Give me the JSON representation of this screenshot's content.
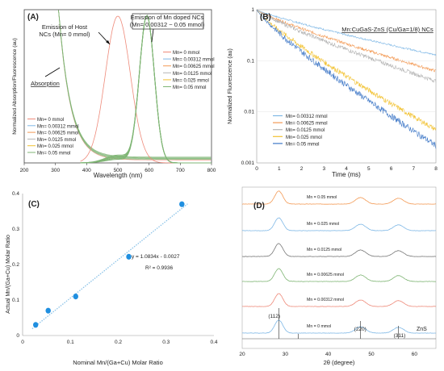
{
  "panels": {
    "A": {
      "label": "(A)",
      "ylabel": "Normalized Absorption/Fluorescence (au)",
      "xlabel": "Wavelength (nm)",
      "annotations": [
        "Emission of Host",
        "NCs (Mn= 0 mmol)",
        "Emission of Mn doped NCs",
        "(Mn= 0.00312 ~ 0.05 mmol)",
        "Absorption"
      ],
      "legend": [
        "Mn= 0 mmol",
        "Mn= 0.00312 mmol",
        "Mn= 0.00625 mmol",
        "Mn= 0.0125 mmol",
        "Mn= 0.025 mmol",
        "Mn= 0.05 mmol"
      ],
      "xticks": [
        "200",
        "300",
        "400",
        "500",
        "600",
        "700",
        "800"
      ]
    },
    "B": {
      "label": "(B)",
      "title": "Mn:CuGaS-ZnS (Cu/Ga=1/8) NCs",
      "ylabel": "Normalized Fluorescence (au)",
      "xlabel": "Time (ms)",
      "legend": [
        "Mn= 0.00312 mmol",
        "Mn= 0.00625 mmol",
        "Mn= 0.0125 mmol",
        "Mn= 0.025 mmol",
        "Mn= 0.05 mmol"
      ],
      "xticks": [
        "0",
        "1",
        "2",
        "3",
        "4",
        "5",
        "6",
        "7",
        "8"
      ],
      "yticks": [
        "1",
        "0.1",
        "0.01",
        "0.001"
      ]
    },
    "C": {
      "label": "(C)",
      "ylabel": "Actual Mn/(Ga+Cu) Molar Ratio",
      "xlabel": "Nominal Mn/(Ga+Cu) Molar Ratio",
      "equation": "y = 1.0834x - 0.0027",
      "r2": "R² = 0.9936",
      "xticks": [
        "0",
        "0.1",
        "0.2",
        "0.3",
        "0.4"
      ],
      "yticks": [
        "0",
        "0.1",
        "0.2",
        "0.3",
        "0.4"
      ]
    },
    "D": {
      "label": "(D)",
      "xlabel": "2θ (degree)",
      "traces": [
        "Mn = 0.05 mmol",
        "Mn = 0.025 mmol",
        "Mn = 0.0125 mmol",
        "Mn = 0.00625 mmol",
        "Mn = 0.00312 mmol",
        "Mn = 0 mmol"
      ],
      "reference": "ZnS",
      "peaks": [
        "(112)",
        "(220)",
        "(311)"
      ],
      "xticks": [
        "20",
        "30",
        "40",
        "50",
        "60"
      ]
    }
  },
  "colors": {
    "mn0": "#ee8a7a",
    "mn00312": "#7fb8e6",
    "mn00625": "#f39a55",
    "mn0125": "#b4b4b4",
    "mn025": "#f2c232",
    "mn05": "#3f78c7",
    "pl_green": "#7fb574",
    "fit": "#8cc3e8",
    "point": "#1f8fe0"
  },
  "chart_data": [
    {
      "type": "line",
      "panel": "A",
      "xlim": [
        200,
        800
      ],
      "ylim": [
        0,
        1.05
      ],
      "series": [
        {
          "name": "Mn= 0 mmol",
          "kind": "absorption+emission",
          "peak_nm": 500
        },
        {
          "name": "Mn= 0.00312 mmol",
          "kind": "absorption+emission",
          "peak_nm": 593
        },
        {
          "name": "Mn= 0.00625 mmol",
          "kind": "absorption+emission",
          "peak_nm": 593
        },
        {
          "name": "Mn= 0.0125 mmol",
          "kind": "absorption+emission",
          "peak_nm": 593
        },
        {
          "name": "Mn= 0.025 mmol",
          "kind": "absorption+emission",
          "peak_nm": 593
        },
        {
          "name": "Mn= 0.05 mmol",
          "kind": "absorption+emission",
          "peak_nm": 593
        }
      ]
    },
    {
      "type": "line",
      "panel": "B",
      "yscale": "log",
      "xlim": [
        0,
        8
      ],
      "ylim": [
        0.001,
        1
      ],
      "series": [
        {
          "name": "Mn= 0.00312 mmol",
          "end_value": 0.13
        },
        {
          "name": "Mn= 0.00625 mmol",
          "end_value": 0.063
        },
        {
          "name": "Mn= 0.0125 mmol",
          "end_value": 0.04
        },
        {
          "name": "Mn= 0.025 mmol",
          "end_value": 0.0045
        },
        {
          "name": "Mn= 0.05 mmol",
          "end_value": 0.0022
        }
      ]
    },
    {
      "type": "scatter",
      "panel": "C",
      "xlim": [
        0,
        0.4
      ],
      "ylim": [
        0,
        0.4
      ],
      "x": [
        0.0273,
        0.0535,
        0.111,
        0.222,
        0.333
      ],
      "y": [
        0.03,
        0.07,
        0.11,
        0.222,
        0.37
      ],
      "fit": {
        "slope": 1.0834,
        "intercept": -0.0027
      }
    },
    {
      "type": "line",
      "panel": "D",
      "xlim": [
        20,
        65
      ],
      "peak_positions": [
        28.5,
        47.5,
        56.3
      ],
      "reference_lines": [
        28.5,
        33.0,
        47.5,
        56.3
      ]
    }
  ]
}
